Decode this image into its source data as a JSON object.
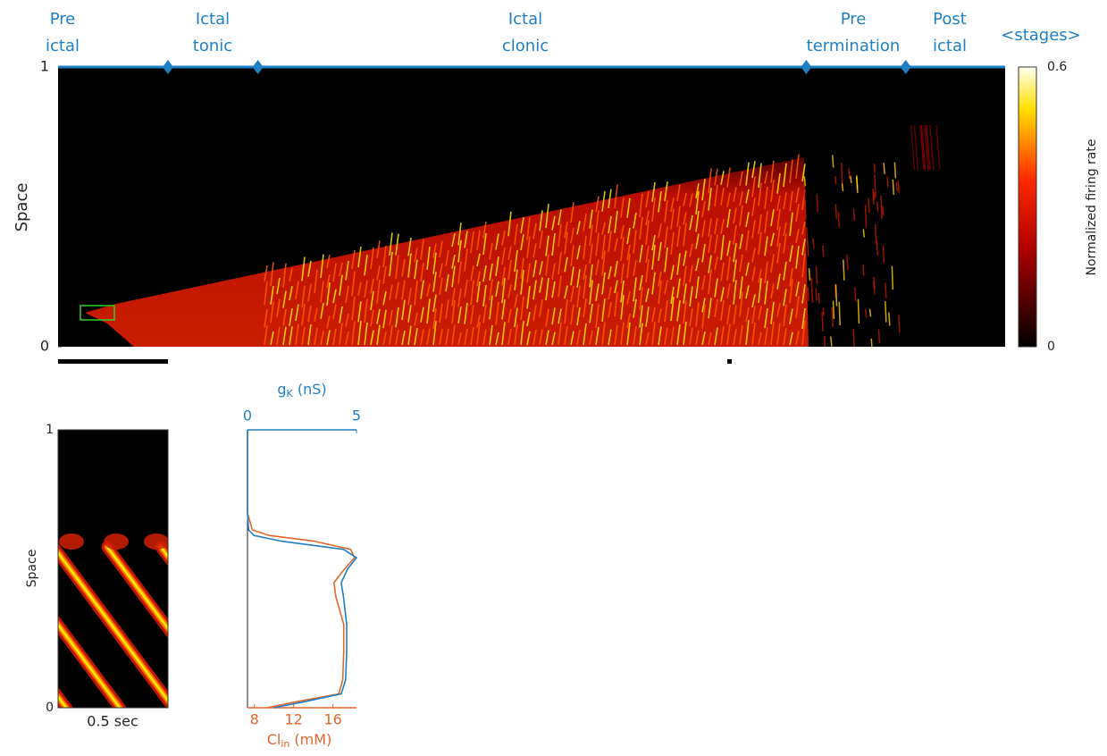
{
  "chart_data": [
    {
      "type": "heatmap",
      "stage_title": "<stages>",
      "stages": [
        [
          "Pre",
          "ictal"
        ],
        [
          "Ictal",
          "tonic"
        ],
        [
          "Ictal",
          "clonic"
        ],
        [
          "Pre",
          "termination"
        ],
        [
          "Post",
          "ictal"
        ]
      ],
      "stage_boundaries": [
        0.116,
        0.211,
        0.79,
        0.895
      ],
      "xlim": [
        0,
        1
      ],
      "ylabel": "Space",
      "ylim": [
        0,
        1
      ],
      "yticks": [
        0,
        1
      ],
      "colorbar": {
        "label": "Normalized firing rate",
        "lim": [
          0,
          0.6
        ],
        "ticks": [
          0,
          0.6
        ]
      },
      "stage_color": "#1f7fc4"
    },
    {
      "type": "heatmap",
      "ylabel": "Space",
      "ylim": [
        0,
        1
      ],
      "yticks": [
        0,
        1
      ],
      "xlabel": "0.5 sec"
    },
    {
      "type": "line",
      "y": [
        0,
        0.02,
        0.05,
        0.1,
        0.2,
        0.3,
        0.4,
        0.45,
        0.5,
        0.54,
        0.57,
        0.6,
        0.62,
        0.64,
        0.7,
        1
      ],
      "ylim": [
        0,
        1
      ],
      "xlim": [
        0,
        5
      ],
      "xticks": [
        0,
        5
      ],
      "xlabel": {
        "base": "g",
        "sub": "K",
        "rest": " (nS)"
      },
      "x2lim": [
        7.3,
        18.4
      ],
      "x2ticks": [
        8,
        12,
        16
      ],
      "x2label": {
        "base": "Cl",
        "sub": "in",
        "rest": " (mM)"
      },
      "series": [
        {
          "color": "#e0662b",
          "axis": "x2",
          "values": [
            9.3,
            12,
            16.6,
            17,
            17.1,
            17.1,
            16.3,
            16.1,
            17.2,
            18.2,
            17.8,
            14,
            9.5,
            7.8,
            7.3,
            7.3
          ]
        },
        {
          "color": "#1f7fc4",
          "axis": "x",
          "values": [
            1.2,
            2.5,
            4.3,
            4.5,
            4.55,
            4.55,
            4.4,
            4.3,
            4.6,
            5.0,
            4.4,
            1.5,
            0.3,
            0.05,
            0,
            0
          ]
        }
      ]
    }
  ]
}
